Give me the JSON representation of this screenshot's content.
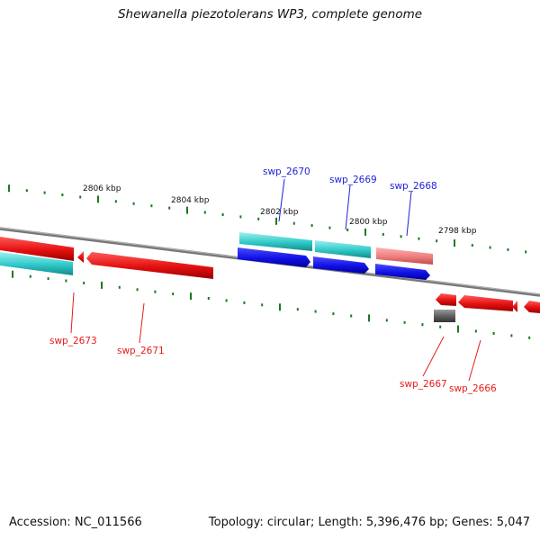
{
  "title": "Shewanella piezotolerans WP3, complete genome",
  "footer": {
    "accession": "Accession: NC_011566",
    "summary": "Topology: circular; Length: 5,396,476 bp; Genes: 5,047"
  },
  "scale_labels": [
    "2806 kbp",
    "2804 kbp",
    "2802 kbp",
    "2800 kbp",
    "2798 kbp"
  ],
  "gene_labels": {
    "swp_2670": "swp_2670",
    "swp_2669": "swp_2669",
    "swp_2668": "swp_2668",
    "swp_2673": "swp_2673",
    "swp_2671": "swp_2671",
    "swp_2667": "swp_2667",
    "swp_2666": "swp_2666"
  },
  "colors": {
    "backbone": "#8a8a8a",
    "tick": "#1a7a1a",
    "cds_forward": "#ee1111",
    "cds_reverse": "#1111ee",
    "rna": "#22c4c4",
    "pseudo": "#ee8080",
    "other": "#666666",
    "label_blue": "#1f1fd6",
    "label_red": "#e81a1a"
  }
}
